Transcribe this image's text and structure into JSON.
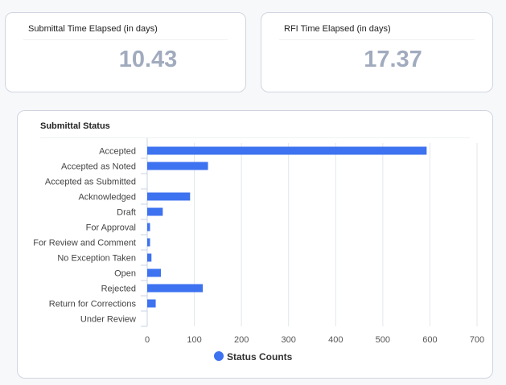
{
  "kpis": [
    {
      "title": "Submittal Time Elapsed (in days)",
      "value": "10.43"
    },
    {
      "title": "RFI Time Elapsed (in days)",
      "value": "17.37"
    }
  ],
  "chart_data": {
    "type": "bar",
    "orientation": "horizontal",
    "title": "Submittal Status",
    "categories": [
      "Accepted",
      "Accepted as Noted",
      "Accepted as Submitted",
      "Acknowledged",
      "Draft",
      "For Approval",
      "For Review and Comment",
      "No Exception Taken",
      "Open",
      "Rejected",
      "Return for Corrections",
      "Under Review"
    ],
    "series": [
      {
        "name": "Status Counts",
        "values": [
          593,
          129,
          0,
          91,
          33,
          6,
          6,
          9,
          29,
          118,
          18,
          0
        ],
        "color": "#3d72f0"
      }
    ],
    "xlim": [
      0,
      700
    ],
    "xticks": [
      0,
      100,
      200,
      300,
      400,
      500,
      600,
      700
    ],
    "grid": true,
    "legend": "bottom"
  }
}
